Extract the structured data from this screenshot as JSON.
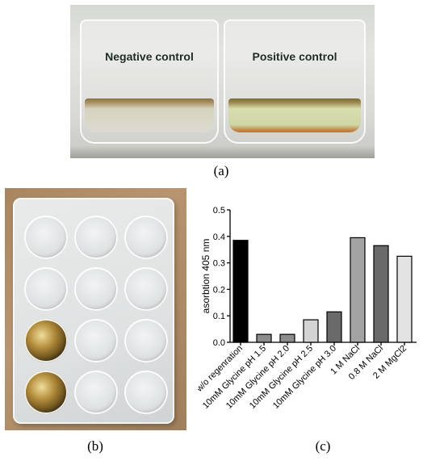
{
  "panel_a": {
    "negative_label": "Negative control",
    "positive_label": "Positive control",
    "caption": "(a)"
  },
  "panel_b": {
    "caption": "(b)",
    "wells": [
      [
        "clear",
        "clear",
        "clear"
      ],
      [
        "clear",
        "clear",
        "clear"
      ],
      [
        "gold",
        "clear",
        "clear"
      ],
      [
        "gold",
        "clear",
        "clear"
      ]
    ]
  },
  "panel_c": {
    "caption": "(c)"
  },
  "chart_data": {
    "type": "bar",
    "title": "",
    "xlabel": "",
    "ylabel": "asorbtion 405 nm",
    "ylim": [
      0,
      0.5
    ],
    "yticks": [
      "0.0",
      "0.1",
      "0.2",
      "0.3",
      "0.4",
      "0.5"
    ],
    "grid": false,
    "categories": [
      "w/o regenration",
      "10mM Glycine pH 1.5",
      "10mM Glycine pH 2.0",
      "10mM Glycine pH 2.5",
      "10mM Glycine pH 3.0",
      "1 M NaCl",
      "0.8 M NaCl",
      "2 M MgCl2"
    ],
    "values": [
      0.385,
      0.03,
      0.03,
      0.085,
      0.115,
      0.395,
      0.365,
      0.325
    ],
    "colors": [
      "#000000",
      "#8c8c8c",
      "#8c8c8c",
      "#d3d3d3",
      "#6a6a6a",
      "#a3a3a3",
      "#6a6a6a",
      "#e3e3e3"
    ]
  }
}
